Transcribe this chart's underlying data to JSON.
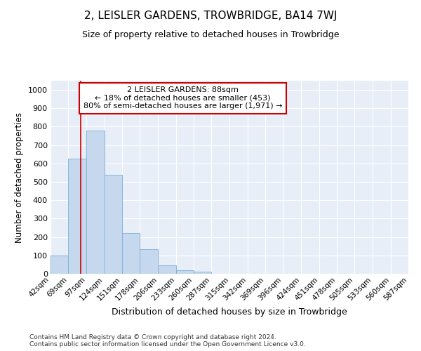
{
  "title": "2, LEISLER GARDENS, TROWBRIDGE, BA14 7WJ",
  "subtitle": "Size of property relative to detached houses in Trowbridge",
  "xlabel": "Distribution of detached houses by size in Trowbridge",
  "ylabel": "Number of detached properties",
  "bar_color": "#c5d8ee",
  "bar_edge_color": "#7aafd4",
  "background_color": "#e8eef8",
  "grid_color": "#ffffff",
  "vline_value": 88,
  "vline_color": "#cc0000",
  "annotation_text": "2 LEISLER GARDENS: 88sqm\n← 18% of detached houses are smaller (453)\n80% of semi-detached houses are larger (1,971) →",
  "annotation_box_color": "#cc0000",
  "bins_left_edges": [
    42,
    69,
    97,
    124,
    151,
    178,
    206,
    233,
    260,
    287,
    315,
    342,
    369,
    396,
    424,
    451,
    478,
    505,
    533,
    560
  ],
  "bin_width": 27,
  "bar_heights": [
    100,
    625,
    780,
    540,
    220,
    135,
    45,
    20,
    10,
    0,
    0,
    0,
    0,
    0,
    0,
    0,
    0,
    0,
    0,
    0
  ],
  "ylim": [
    0,
    1050
  ],
  "yticks": [
    0,
    100,
    200,
    300,
    400,
    500,
    600,
    700,
    800,
    900,
    1000
  ],
  "footer_text": "Contains HM Land Registry data © Crown copyright and database right 2024.\nContains public sector information licensed under the Open Government Licence v3.0.",
  "tick_labels": [
    "42sqm",
    "69sqm",
    "97sqm",
    "124sqm",
    "151sqm",
    "178sqm",
    "206sqm",
    "233sqm",
    "260sqm",
    "287sqm",
    "315sqm",
    "342sqm",
    "369sqm",
    "396sqm",
    "424sqm",
    "451sqm",
    "478sqm",
    "505sqm",
    "533sqm",
    "560sqm",
    "587sqm"
  ]
}
